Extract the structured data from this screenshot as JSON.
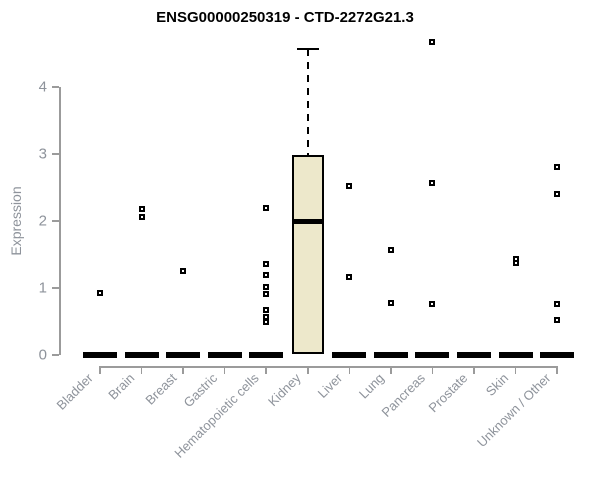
{
  "chart_data": {
    "type": "boxplot",
    "title": "ENSG00000250319 - CTD-2272G21.3",
    "ylabel": "Expression",
    "xlabel": "",
    "yticks": [
      0,
      1,
      2,
      3,
      4
    ],
    "ylim": [
      0,
      4.75
    ],
    "grid": false,
    "legend": false,
    "marker": "open-square",
    "categories": [
      "Bladder",
      "Brain",
      "Breast",
      "Gastric",
      "Hematopoietic cells",
      "Kidney",
      "Liver",
      "Lung",
      "Pancreas",
      "Prostate",
      "Skin",
      "Unknown / Other"
    ],
    "series": [
      {
        "label": "Bladder",
        "collapsed": true,
        "median": 0,
        "outliers": [
          0.93
        ]
      },
      {
        "label": "Brain",
        "collapsed": true,
        "median": 0,
        "outliers": [
          2.18,
          2.06
        ]
      },
      {
        "label": "Breast",
        "collapsed": true,
        "median": 0,
        "outliers": [
          1.25
        ]
      },
      {
        "label": "Gastric",
        "collapsed": true,
        "median": 0,
        "outliers": []
      },
      {
        "label": "Hematopoietic cells",
        "collapsed": true,
        "median": 0,
        "outliers": [
          2.19,
          1.36,
          1.19,
          1.01,
          0.91,
          0.67,
          0.57,
          0.49
        ]
      },
      {
        "label": "Kidney",
        "collapsed": false,
        "q1": 0.02,
        "median": 2.0,
        "q3": 2.98,
        "whisker_low": 0.02,
        "whisker_high": 4.57,
        "outliers": []
      },
      {
        "label": "Liver",
        "collapsed": true,
        "median": 0,
        "outliers": [
          2.52,
          1.16
        ]
      },
      {
        "label": "Lung",
        "collapsed": true,
        "median": 0,
        "outliers": [
          1.57,
          0.78
        ]
      },
      {
        "label": "Pancreas",
        "collapsed": true,
        "median": 0,
        "outliers": [
          4.67,
          2.57,
          0.76
        ]
      },
      {
        "label": "Prostate",
        "collapsed": true,
        "median": 0,
        "outliers": []
      },
      {
        "label": "Skin",
        "collapsed": true,
        "median": 0,
        "outliers": [
          1.44,
          1.37
        ]
      },
      {
        "label": "Unknown / Other",
        "collapsed": true,
        "median": 0,
        "outliers": [
          2.81,
          2.4,
          0.76,
          0.52
        ]
      }
    ]
  },
  "colors": {
    "box_fill": "#ede8cb",
    "box_border": "#000000",
    "axis": "#9b9b9b",
    "axis_text": "#8e939b",
    "title_text": "#000000"
  }
}
